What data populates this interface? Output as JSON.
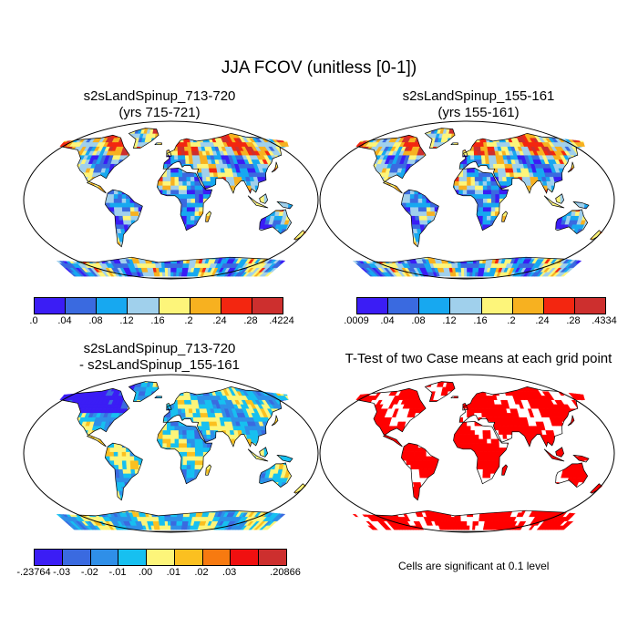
{
  "figure": {
    "title": "JJA FCOV (unitless [0-1])",
    "note": "Cells are significant at 0.1 level"
  },
  "panels": [
    {
      "title_line1": "s2sLandSpinup_713-720",
      "title_line2": "(yrs 715-721)",
      "type": "field",
      "colorbar": {
        "colors": [
          "#3b1df5",
          "#3a6ae0",
          "#17a8f0",
          "#a0d0ec",
          "#fdf57a",
          "#f7b120",
          "#f32610",
          "#cd2f2e"
        ],
        "labels": [
          ".0",
          ".04",
          ".08",
          ".12",
          ".16",
          ".2",
          ".24",
          ".28",
          ".4224"
        ]
      }
    },
    {
      "title_line1": "s2sLandSpinup_155-161",
      "title_line2": "(yrs 155-161)",
      "type": "field",
      "colorbar": {
        "colors": [
          "#3b1df5",
          "#3a6ae0",
          "#17a8f0",
          "#a0d0ec",
          "#fdf57a",
          "#f7b120",
          "#f32610",
          "#cd2f2e"
        ],
        "labels": [
          ".0009",
          ".04",
          ".08",
          ".12",
          ".16",
          ".2",
          ".24",
          ".28",
          ".4334"
        ]
      }
    },
    {
      "title_line1": "s2sLandSpinup_713-720",
      "title_line2": "- s2sLandSpinup_155-161",
      "type": "difference",
      "colorbar": {
        "colors": [
          "#3b1df5",
          "#3a6ae0",
          "#2f8fe8",
          "#17c0f0",
          "#fdf57a",
          "#fbc020",
          "#f77a10",
          "#f01010",
          "#cd2f2e"
        ],
        "labels": [
          "-.23764",
          "-.03",
          "-.02",
          "-.01",
          ".00",
          ".01",
          ".02",
          ".03",
          "",
          ".20866"
        ]
      }
    },
    {
      "title_line1": "T-Test of two Case means at each grid point",
      "title_line2": "",
      "type": "ttest"
    }
  ]
}
